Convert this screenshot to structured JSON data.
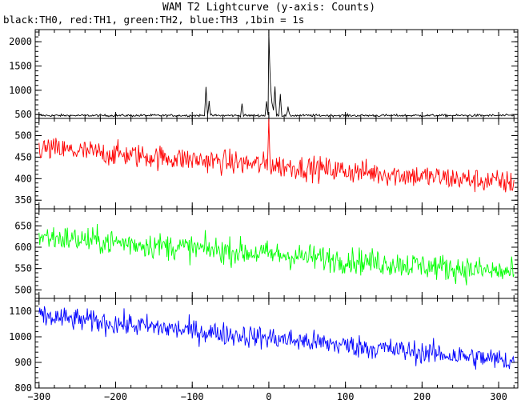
{
  "chart_data": {
    "type": "line",
    "title": "WAM T2 Lightcurve (y-axis: Counts)",
    "subtitle": "black:TH0, red:TH1, green:TH2, blue:TH3 ,1bin = 1s",
    "xlabel": "",
    "xlim": [
      -305,
      325
    ],
    "x_ticks": [
      -300,
      -200,
      -100,
      0,
      100,
      200,
      300
    ],
    "shared_x_axis": true,
    "grid": false,
    "panels": [
      {
        "series_name": "TH0",
        "color": "#000000",
        "ylim": [
          420,
          2250
        ],
        "y_ticks": [
          500,
          1000,
          1500,
          2000
        ],
        "baseline": 480,
        "noise": 35,
        "features": [
          {
            "x": -82,
            "peak": 1100
          },
          {
            "x": -78,
            "peak": 780
          },
          {
            "x": -35,
            "peak": 720
          },
          {
            "x": -3,
            "peak": 780
          },
          {
            "x": 0,
            "peak": 2200
          },
          {
            "x": 8,
            "peak": 1050
          },
          {
            "x": 15,
            "peak": 920
          },
          {
            "x": 25,
            "peak": 650
          }
        ]
      },
      {
        "series_name": "TH1",
        "color": "#ff0000",
        "ylim": [
          330,
          540
        ],
        "y_ticks": [
          350,
          400,
          450,
          500
        ],
        "start_level": 470,
        "end_level": 390,
        "noise": 20,
        "features": [
          {
            "x": 0,
            "peak": 540
          }
        ]
      },
      {
        "series_name": "TH2",
        "color": "#00ff00",
        "ylim": [
          480,
          690
        ],
        "y_ticks": [
          500,
          550,
          600,
          650
        ],
        "start_level": 625,
        "end_level": 540,
        "noise": 22,
        "features": []
      },
      {
        "series_name": "TH3",
        "color": "#0000ff",
        "ylim": [
          800,
          1150
        ],
        "y_ticks": [
          800,
          900,
          1000,
          1100
        ],
        "start_level": 1080,
        "end_level": 905,
        "noise": 32,
        "features": []
      }
    ]
  }
}
